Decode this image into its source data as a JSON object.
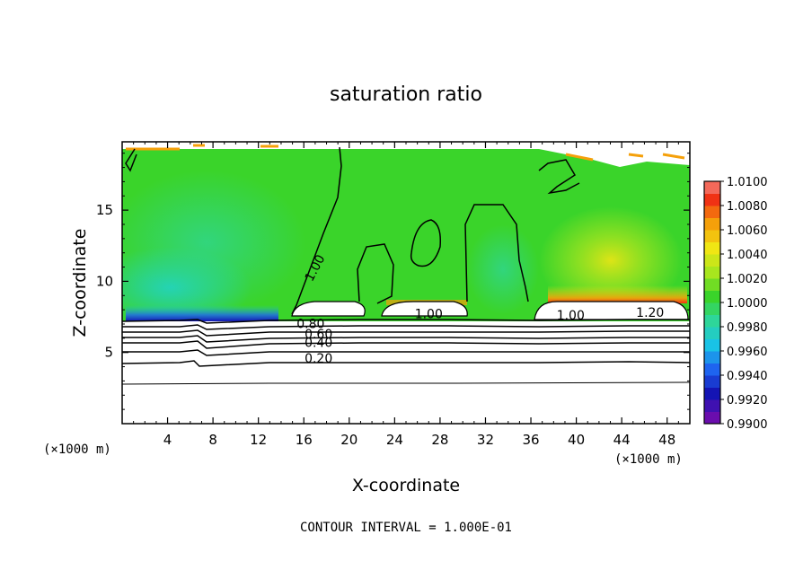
{
  "chart_data": {
    "type": "heatmap",
    "title": "saturation ratio",
    "xlabel": "X-coordinate",
    "ylabel": "Z-coordinate",
    "x_unit": "(×1000 m)",
    "xlim": [
      0,
      50
    ],
    "ylim": [
      0,
      19.8
    ],
    "x_ticks": [
      4,
      8,
      12,
      16,
      20,
      24,
      28,
      32,
      36,
      40,
      44,
      48
    ],
    "y_ticks": [
      5,
      10,
      15
    ],
    "colorbar": {
      "levels": [
        "0.9900",
        "0.9920",
        "0.9940",
        "0.9960",
        "0.9980",
        "1.0000",
        "1.0020",
        "1.0040",
        "1.0060",
        "1.0080",
        "1.0100"
      ],
      "colors": [
        "#6a0dad",
        "#1414b4",
        "#1e64f0",
        "#19c3e6",
        "#2ed69a",
        "#3ad42a",
        "#a8e61e",
        "#f0e614",
        "#f5a00a",
        "#f03214",
        "#f5a0a0"
      ]
    },
    "contour_labels": [
      {
        "text": "1.00",
        "x": 17.3,
        "y": 10.8
      },
      {
        "text": "0.80",
        "x": 16.6,
        "y": 6.7
      },
      {
        "text": "0.60",
        "x": 17.3,
        "y": 6.0
      },
      {
        "text": "0.40",
        "x": 17.3,
        "y": 5.4
      },
      {
        "text": "0.20",
        "x": 17.3,
        "y": 4.3
      },
      {
        "text": "1.00",
        "x": 27.0,
        "y": 7.4
      },
      {
        "text": "1.00",
        "x": 39.5,
        "y": 7.3
      },
      {
        "text": "1.20",
        "x": 46.5,
        "y": 7.5
      }
    ],
    "contour_interval_text": "CONTOUR INTERVAL = 1.000E-01"
  }
}
